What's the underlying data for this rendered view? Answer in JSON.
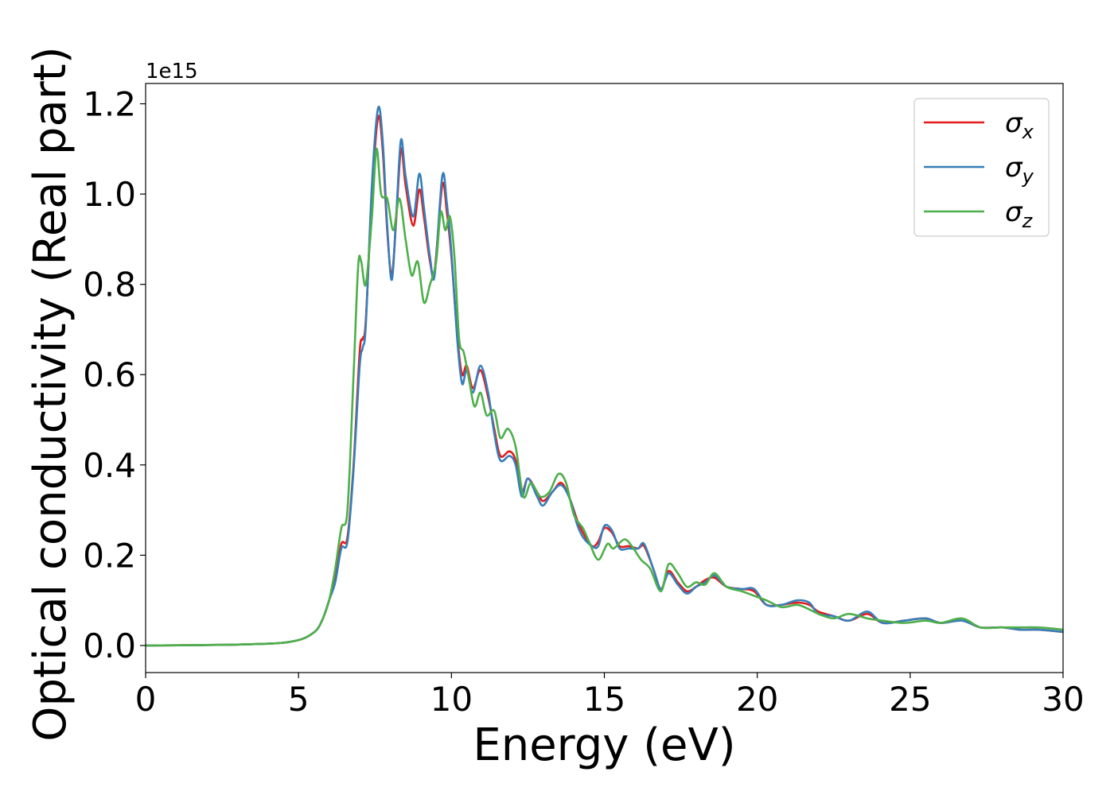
{
  "chart_data": {
    "type": "line",
    "xlabel": "Energy (eV)",
    "ylabel": "Optical conductivity (Real part)",
    "y_offset_text": "1e15",
    "xlim": [
      0,
      30
    ],
    "ylim": [
      -0.06,
      1.245
    ],
    "xticks": [
      0,
      5,
      10,
      15,
      20,
      25,
      30
    ],
    "xtick_labels": [
      "0",
      "5",
      "10",
      "15",
      "20",
      "25",
      "30"
    ],
    "yticks": [
      0.0,
      0.2,
      0.4,
      0.6,
      0.8,
      1.0,
      1.2
    ],
    "ytick_labels": [
      "0.0",
      "0.2",
      "0.4",
      "0.6",
      "0.8",
      "1.0",
      "1.2"
    ],
    "grid": false,
    "legend_position": "upper-right",
    "series": [
      {
        "name": "σx",
        "legend_symbol": "σ",
        "legend_subscript": "x",
        "color": "#e41a1c",
        "points": [
          [
            0,
            0
          ],
          [
            2,
            0.001
          ],
          [
            3,
            0.002
          ],
          [
            4,
            0.004
          ],
          [
            4.5,
            0.006
          ],
          [
            5,
            0.012
          ],
          [
            5.3,
            0.02
          ],
          [
            5.6,
            0.035
          ],
          [
            5.8,
            0.06
          ],
          [
            6,
            0.1
          ],
          [
            6.2,
            0.15
          ],
          [
            6.4,
            0.225
          ],
          [
            6.6,
            0.24
          ],
          [
            6.8,
            0.4
          ],
          [
            7,
            0.65
          ],
          [
            7.1,
            0.68
          ],
          [
            7.2,
            0.72
          ],
          [
            7.4,
            1.0
          ],
          [
            7.6,
            1.17
          ],
          [
            7.75,
            1.1
          ],
          [
            7.9,
            0.92
          ],
          [
            8.05,
            0.82
          ],
          [
            8.2,
            0.95
          ],
          [
            8.35,
            1.1
          ],
          [
            8.5,
            1.02
          ],
          [
            8.75,
            0.93
          ],
          [
            8.95,
            1.01
          ],
          [
            9.1,
            0.95
          ],
          [
            9.3,
            0.85
          ],
          [
            9.45,
            0.83
          ],
          [
            9.7,
            1.02
          ],
          [
            9.85,
            0.96
          ],
          [
            10,
            0.86
          ],
          [
            10.2,
            0.68
          ],
          [
            10.35,
            0.6
          ],
          [
            10.5,
            0.62
          ],
          [
            10.7,
            0.57
          ],
          [
            10.95,
            0.61
          ],
          [
            11.2,
            0.55
          ],
          [
            11.4,
            0.48
          ],
          [
            11.6,
            0.42
          ],
          [
            11.9,
            0.43
          ],
          [
            12.1,
            0.41
          ],
          [
            12.3,
            0.34
          ],
          [
            12.5,
            0.37
          ],
          [
            12.8,
            0.34
          ],
          [
            13,
            0.32
          ],
          [
            13.3,
            0.34
          ],
          [
            13.6,
            0.36
          ],
          [
            13.9,
            0.32
          ],
          [
            14.1,
            0.28
          ],
          [
            14.3,
            0.25
          ],
          [
            14.6,
            0.22
          ],
          [
            14.8,
            0.23
          ],
          [
            15,
            0.26
          ],
          [
            15.25,
            0.25
          ],
          [
            15.5,
            0.22
          ],
          [
            15.8,
            0.22
          ],
          [
            16.1,
            0.215
          ],
          [
            16.3,
            0.22
          ],
          [
            16.6,
            0.17
          ],
          [
            16.85,
            0.125
          ],
          [
            17.1,
            0.165
          ],
          [
            17.4,
            0.14
          ],
          [
            17.7,
            0.12
          ],
          [
            18,
            0.13
          ],
          [
            18.3,
            0.145
          ],
          [
            18.6,
            0.15
          ],
          [
            19,
            0.13
          ],
          [
            19.5,
            0.125
          ],
          [
            19.9,
            0.12
          ],
          [
            20.3,
            0.09
          ],
          [
            20.8,
            0.09
          ],
          [
            21.3,
            0.095
          ],
          [
            21.7,
            0.09
          ],
          [
            22,
            0.075
          ],
          [
            22.5,
            0.065
          ],
          [
            23,
            0.055
          ],
          [
            23.6,
            0.07
          ],
          [
            24.1,
            0.05
          ],
          [
            24.8,
            0.055
          ],
          [
            25.5,
            0.06
          ],
          [
            26,
            0.05
          ],
          [
            26.7,
            0.055
          ],
          [
            27.3,
            0.04
          ],
          [
            28,
            0.04
          ],
          [
            28.6,
            0.035
          ],
          [
            29.2,
            0.035
          ],
          [
            30,
            0.03
          ]
        ]
      },
      {
        "name": "σy",
        "legend_symbol": "σ",
        "legend_subscript": "y",
        "color": "#377eb8",
        "points": [
          [
            0,
            0
          ],
          [
            2,
            0.001
          ],
          [
            3,
            0.002
          ],
          [
            4,
            0.004
          ],
          [
            4.5,
            0.006
          ],
          [
            5,
            0.012
          ],
          [
            5.3,
            0.02
          ],
          [
            5.6,
            0.035
          ],
          [
            5.8,
            0.06
          ],
          [
            6,
            0.1
          ],
          [
            6.2,
            0.14
          ],
          [
            6.4,
            0.215
          ],
          [
            6.6,
            0.23
          ],
          [
            6.8,
            0.39
          ],
          [
            7,
            0.62
          ],
          [
            7.1,
            0.66
          ],
          [
            7.2,
            0.71
          ],
          [
            7.4,
            1.02
          ],
          [
            7.6,
            1.19
          ],
          [
            7.75,
            1.12
          ],
          [
            7.9,
            0.93
          ],
          [
            8.05,
            0.81
          ],
          [
            8.2,
            0.96
          ],
          [
            8.35,
            1.12
          ],
          [
            8.5,
            1.04
          ],
          [
            8.75,
            0.95
          ],
          [
            8.95,
            1.045
          ],
          [
            9.1,
            0.97
          ],
          [
            9.3,
            0.86
          ],
          [
            9.45,
            0.82
          ],
          [
            9.7,
            1.04
          ],
          [
            9.85,
            0.98
          ],
          [
            10,
            0.87
          ],
          [
            10.2,
            0.67
          ],
          [
            10.35,
            0.58
          ],
          [
            10.5,
            0.61
          ],
          [
            10.7,
            0.56
          ],
          [
            10.95,
            0.62
          ],
          [
            11.2,
            0.56
          ],
          [
            11.4,
            0.47
          ],
          [
            11.6,
            0.41
          ],
          [
            11.9,
            0.42
          ],
          [
            12.1,
            0.4
          ],
          [
            12.3,
            0.33
          ],
          [
            12.5,
            0.37
          ],
          [
            12.8,
            0.33
          ],
          [
            13,
            0.31
          ],
          [
            13.3,
            0.34
          ],
          [
            13.6,
            0.355
          ],
          [
            13.9,
            0.32
          ],
          [
            14.1,
            0.27
          ],
          [
            14.3,
            0.24
          ],
          [
            14.6,
            0.22
          ],
          [
            14.8,
            0.22
          ],
          [
            15,
            0.265
          ],
          [
            15.25,
            0.255
          ],
          [
            15.5,
            0.215
          ],
          [
            15.8,
            0.215
          ],
          [
            16.1,
            0.215
          ],
          [
            16.3,
            0.225
          ],
          [
            16.6,
            0.17
          ],
          [
            16.85,
            0.125
          ],
          [
            17.1,
            0.16
          ],
          [
            17.4,
            0.135
          ],
          [
            17.7,
            0.115
          ],
          [
            18,
            0.13
          ],
          [
            18.3,
            0.14
          ],
          [
            18.6,
            0.155
          ],
          [
            19,
            0.13
          ],
          [
            19.5,
            0.125
          ],
          [
            19.9,
            0.125
          ],
          [
            20.3,
            0.09
          ],
          [
            20.8,
            0.09
          ],
          [
            21.3,
            0.1
          ],
          [
            21.7,
            0.095
          ],
          [
            22,
            0.07
          ],
          [
            22.5,
            0.065
          ],
          [
            23,
            0.055
          ],
          [
            23.6,
            0.075
          ],
          [
            24.1,
            0.05
          ],
          [
            24.8,
            0.055
          ],
          [
            25.5,
            0.06
          ],
          [
            26,
            0.05
          ],
          [
            26.7,
            0.055
          ],
          [
            27.3,
            0.04
          ],
          [
            28,
            0.04
          ],
          [
            28.6,
            0.035
          ],
          [
            29.2,
            0.035
          ],
          [
            30,
            0.03
          ]
        ]
      },
      {
        "name": "σz",
        "legend_symbol": "σ",
        "legend_subscript": "z",
        "color": "#4daf4a",
        "points": [
          [
            0,
            0
          ],
          [
            2,
            0.001
          ],
          [
            3,
            0.002
          ],
          [
            4,
            0.004
          ],
          [
            4.5,
            0.006
          ],
          [
            5,
            0.012
          ],
          [
            5.3,
            0.02
          ],
          [
            5.6,
            0.035
          ],
          [
            5.8,
            0.06
          ],
          [
            6,
            0.1
          ],
          [
            6.2,
            0.17
          ],
          [
            6.4,
            0.26
          ],
          [
            6.6,
            0.3
          ],
          [
            6.8,
            0.6
          ],
          [
            6.95,
            0.84
          ],
          [
            7.05,
            0.85
          ],
          [
            7.2,
            0.8
          ],
          [
            7.4,
            0.95
          ],
          [
            7.55,
            1.1
          ],
          [
            7.7,
            1.0
          ],
          [
            7.9,
            0.99
          ],
          [
            8.1,
            0.92
          ],
          [
            8.3,
            0.99
          ],
          [
            8.5,
            0.9
          ],
          [
            8.7,
            0.82
          ],
          [
            8.9,
            0.85
          ],
          [
            9.1,
            0.76
          ],
          [
            9.3,
            0.8
          ],
          [
            9.5,
            0.85
          ],
          [
            9.65,
            0.96
          ],
          [
            9.8,
            0.92
          ],
          [
            9.95,
            0.95
          ],
          [
            10.1,
            0.86
          ],
          [
            10.25,
            0.68
          ],
          [
            10.4,
            0.65
          ],
          [
            10.55,
            0.6
          ],
          [
            10.75,
            0.53
          ],
          [
            10.95,
            0.56
          ],
          [
            11.15,
            0.51
          ],
          [
            11.4,
            0.52
          ],
          [
            11.6,
            0.46
          ],
          [
            11.85,
            0.48
          ],
          [
            12.1,
            0.44
          ],
          [
            12.35,
            0.33
          ],
          [
            12.6,
            0.36
          ],
          [
            12.9,
            0.33
          ],
          [
            13.2,
            0.34
          ],
          [
            13.5,
            0.38
          ],
          [
            13.75,
            0.36
          ],
          [
            14,
            0.29
          ],
          [
            14.3,
            0.26
          ],
          [
            14.5,
            0.23
          ],
          [
            14.8,
            0.19
          ],
          [
            15.1,
            0.225
          ],
          [
            15.3,
            0.215
          ],
          [
            15.65,
            0.235
          ],
          [
            15.9,
            0.22
          ],
          [
            16.2,
            0.19
          ],
          [
            16.5,
            0.17
          ],
          [
            16.85,
            0.12
          ],
          [
            17.1,
            0.18
          ],
          [
            17.4,
            0.16
          ],
          [
            17.7,
            0.13
          ],
          [
            18,
            0.14
          ],
          [
            18.3,
            0.135
          ],
          [
            18.6,
            0.16
          ],
          [
            19,
            0.13
          ],
          [
            19.5,
            0.12
          ],
          [
            19.9,
            0.11
          ],
          [
            20.3,
            0.1
          ],
          [
            20.8,
            0.085
          ],
          [
            21.3,
            0.09
          ],
          [
            21.7,
            0.08
          ],
          [
            22,
            0.07
          ],
          [
            22.5,
            0.06
          ],
          [
            23,
            0.07
          ],
          [
            23.6,
            0.06
          ],
          [
            24.1,
            0.055
          ],
          [
            24.8,
            0.05
          ],
          [
            25.5,
            0.055
          ],
          [
            26,
            0.05
          ],
          [
            26.7,
            0.06
          ],
          [
            27.3,
            0.04
          ],
          [
            28,
            0.04
          ],
          [
            28.6,
            0.04
          ],
          [
            29.2,
            0.04
          ],
          [
            30,
            0.035
          ]
        ]
      }
    ]
  }
}
